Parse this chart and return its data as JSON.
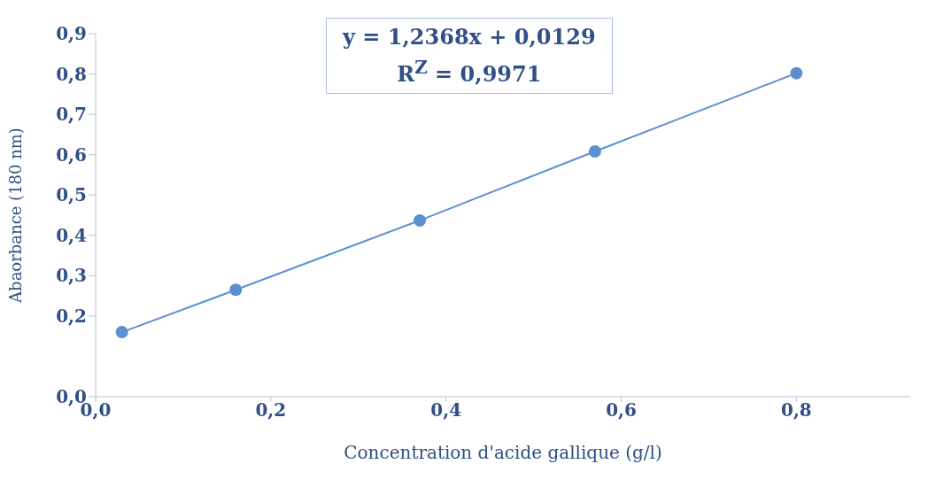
{
  "chart_data": {
    "type": "line",
    "xlabel": "Concentration d'acide gallique (g/l)",
    "ylabel": "Abaorbance (180 nm)",
    "annotations": [
      "y = 1,2368x + 0,0129",
      "R$^{Z}$ = 0,9971"
    ],
    "x": [
      0.03,
      0.16,
      0.37,
      0.57,
      0.8
    ],
    "series": [
      {
        "color": "#5b8fd0",
        "values": [
          0.16,
          0.265,
          0.437,
          0.608,
          0.802
        ]
      }
    ],
    "marker": "circle",
    "line_style": "solid",
    "grid": false,
    "legend": false,
    "xlim": [
      0,
      0.93
    ],
    "xticks": [
      {
        "value": 0,
        "label": "0,0"
      },
      {
        "value": 0.2,
        "label": "0,2"
      },
      {
        "value": 0.4,
        "label": "0,4"
      },
      {
        "value": 0.6,
        "label": "0,6"
      },
      {
        "value": 0.8,
        "label": "0,8"
      }
    ],
    "ylim": [
      0,
      0.9
    ],
    "yticks": [
      {
        "value": 0,
        "label": "0,0"
      },
      {
        "value": 0.2,
        "label": "0,2"
      },
      {
        "value": 0.3,
        "label": "0,3"
      },
      {
        "value": 0.4,
        "label": "0,4"
      },
      {
        "value": 0.5,
        "label": "0,5"
      },
      {
        "value": 0.6,
        "label": "0,6"
      },
      {
        "value": 0.7,
        "label": "0,7"
      },
      {
        "value": 0.8,
        "label": "0,8"
      },
      {
        "value": 0.9,
        "label": "0,9"
      }
    ]
  }
}
